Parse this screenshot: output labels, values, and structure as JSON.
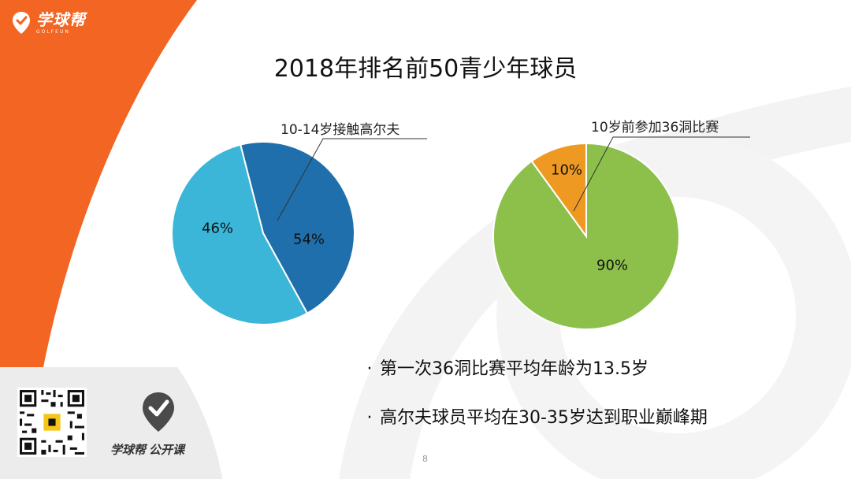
{
  "header": {
    "logo_text": "学球帮",
    "logo_sub": "GOLFEUN"
  },
  "title": "2018年排名前50青少年球员",
  "chart_data": [
    {
      "type": "pie",
      "callout": "10-14岁接触高尔夫",
      "labels": [
        "46%",
        "54%"
      ],
      "values": [
        46,
        54
      ],
      "colors": [
        "#1e6fab",
        "#3bb6d8"
      ]
    },
    {
      "type": "pie",
      "callout": "10岁前参加36洞比赛",
      "labels": [
        "10%",
        "90%"
      ],
      "values": [
        10,
        90
      ],
      "colors": [
        "#ee9a22",
        "#8cc04b"
      ]
    }
  ],
  "bullets": [
    "第一次36洞比赛平均年龄为13.5岁",
    "高尔夫球员平均在30-35岁达到职业巅峰期"
  ],
  "bullet_marker": "·",
  "footer": {
    "brand": "学球帮",
    "brand_sub": "公开课",
    "page_number": "8"
  },
  "colors": {
    "accent": "#f26522",
    "footer_bg": "#ececec"
  }
}
